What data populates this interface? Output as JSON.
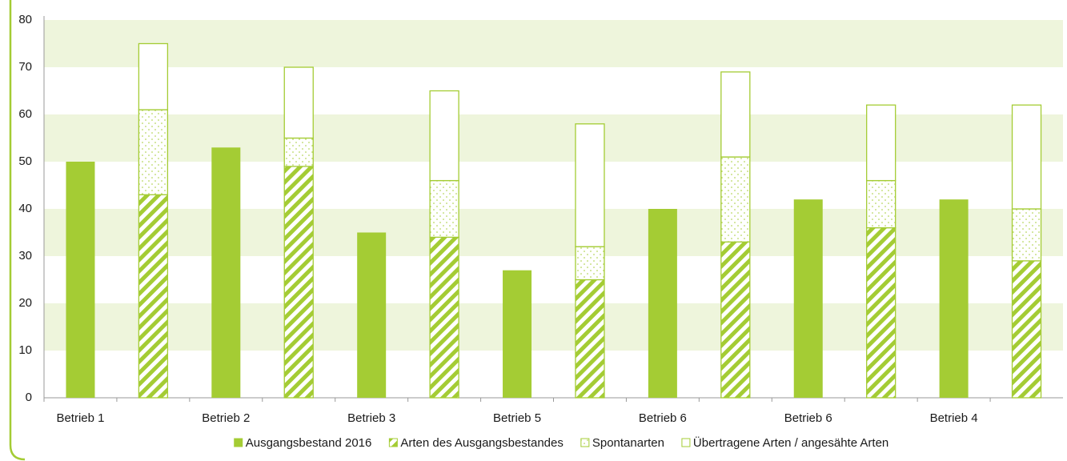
{
  "chart_data": {
    "type": "stacked_bar",
    "categories": [
      "Betrieb 1",
      null,
      "Betrieb 2",
      null,
      "Betrieb 3",
      null,
      "Betrieb 5",
      null,
      "Betrieb 6",
      null,
      "Betrieb 6",
      null,
      "Betrieb 4",
      null
    ],
    "series": [
      {
        "name": "Ausgangsbestand 2016",
        "color": "#a4cc34",
        "pattern": "solid",
        "values": [
          50,
          null,
          53,
          null,
          35,
          null,
          27,
          null,
          40,
          null,
          42,
          null,
          42,
          null
        ]
      },
      {
        "name": "Arten des Ausgangsbestandes",
        "color": "#a4cc34",
        "pattern": "hatch",
        "values": [
          null,
          43,
          null,
          49,
          null,
          34,
          null,
          25,
          null,
          33,
          null,
          36,
          null,
          29
        ]
      },
      {
        "name": "Spontanarten",
        "color": "#a4cc34",
        "pattern": "dots",
        "values": [
          null,
          18,
          null,
          6,
          null,
          12,
          null,
          7,
          null,
          18,
          null,
          10,
          null,
          11
        ]
      },
      {
        "name": "Übertragene Arten / angesähte Arten",
        "color": "#a4cc34",
        "pattern": "none",
        "values": [
          null,
          14,
          null,
          15,
          null,
          19,
          null,
          26,
          null,
          18,
          null,
          16,
          null,
          22
        ]
      }
    ],
    "ylim": [
      0,
      80
    ],
    "yticks": [
      0,
      10,
      20,
      30,
      40,
      50,
      60,
      70,
      80
    ],
    "band_color": "#eef5dc",
    "legend": "bottom"
  }
}
